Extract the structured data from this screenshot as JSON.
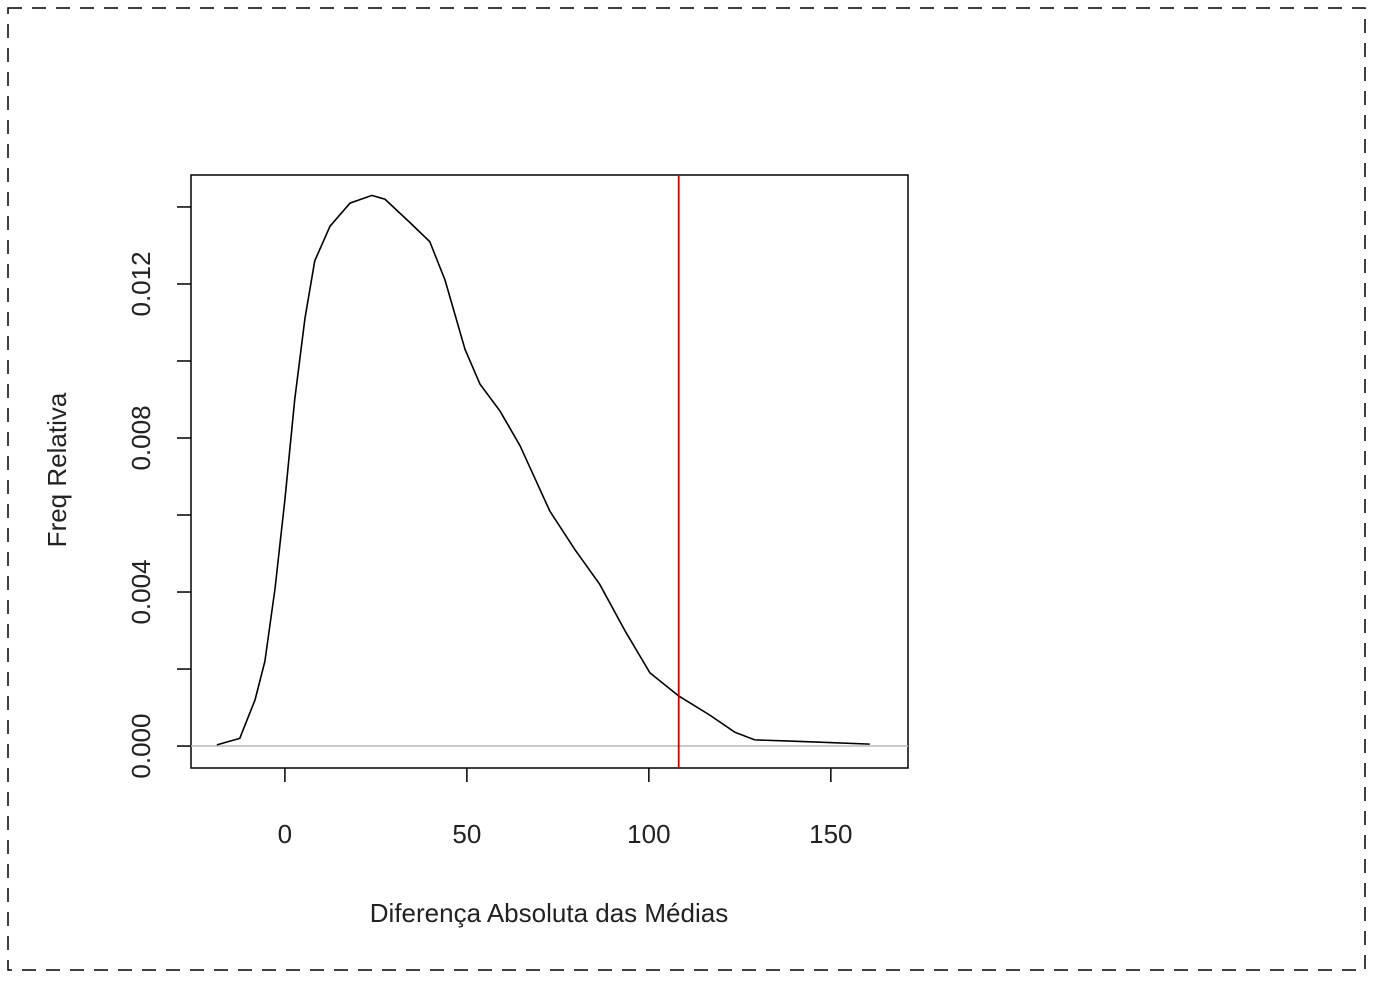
{
  "chart_data": {
    "type": "line",
    "x_label": "Diferença Absoluta das Médias",
    "y_label": "Freq Relativa",
    "x": [
      -18.7,
      -12.4,
      -8.2,
      -5.5,
      -2.7,
      0,
      2.7,
      5.5,
      8.2,
      12.4,
      17.9,
      23.9,
      27.5,
      34.3,
      39.8,
      44,
      49.5,
      53.6,
      59.1,
      64.6,
      72.8,
      79.7,
      86.5,
      93.4,
      100.3,
      108.2,
      116.8,
      123.6,
      129.1,
      138.7,
      147,
      160.7
    ],
    "values": [
      3e-05,
      0.0002,
      0.0012,
      0.0022,
      0.0041,
      0.0064,
      0.009,
      0.0111,
      0.0126,
      0.0135,
      0.0141,
      0.0143,
      0.0142,
      0.0136,
      0.0131,
      0.0121,
      0.0103,
      0.0094,
      0.0087,
      0.0078,
      0.0061,
      0.0051,
      0.0042,
      0.003,
      0.0019,
      0.0013,
      0.0008,
      0.00036,
      0.00016,
      0.00013,
      0.0001,
      5e-05
    ],
    "color": "#000000",
    "xlim": [
      -25.8,
      171.2
    ],
    "ylim": [
      -0.00057,
      0.01483
    ],
    "xticks": [
      0,
      50,
      100,
      150
    ],
    "yticks": [
      {
        "value": 0,
        "label": "0.000"
      },
      {
        "value": 0.002,
        "label": null
      },
      {
        "value": 0.004,
        "label": "0.004"
      },
      {
        "value": 0.006,
        "label": null
      },
      {
        "value": 0.008,
        "label": "0.008"
      },
      {
        "value": 0.01,
        "label": null
      },
      {
        "value": 0.012,
        "label": "0.012"
      },
      {
        "value": 0.014,
        "label": null
      }
    ],
    "vline": {
      "value": 108.2,
      "color": "#cc0000"
    },
    "hline": {
      "value": 0,
      "color": "#bbbbbb"
    }
  }
}
